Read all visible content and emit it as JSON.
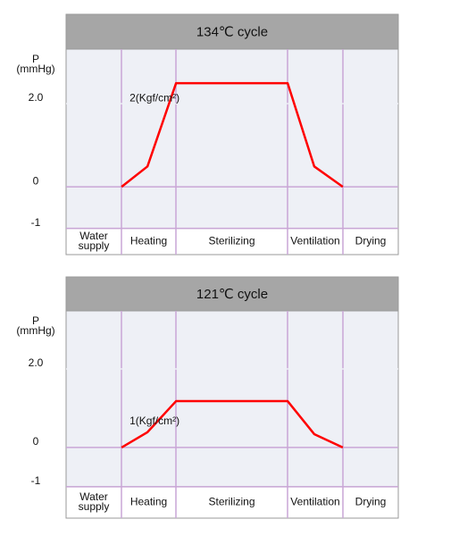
{
  "chart_data": [
    {
      "type": "line",
      "title": "134℃ cycle",
      "ylabel": [
        "P",
        "(mmHg)"
      ],
      "annotation": "2(Kgf/cm²)",
      "x": [
        16.7,
        24.5,
        33.1,
        66.7,
        74.7,
        83.3
      ],
      "series": [
        {
          "color": "#ff0000",
          "values": [
            0,
            0.49,
            2.49,
            2.49,
            0.49,
            0
          ]
        }
      ],
      "xlim": [
        0,
        100
      ],
      "ylim": [
        -1.63,
        3.31
      ],
      "yticks": [
        -1,
        0,
        {
          "value": 2,
          "label": "2.0"
        }
      ],
      "phases": [
        [
          "Water",
          "supply"
        ],
        [
          "Heating"
        ],
        [
          "Sterilizing"
        ],
        [
          "Ventilation"
        ],
        [
          "Drying"
        ]
      ]
    },
    {
      "type": "line",
      "title": "121℃ cycle",
      "ylabel": [
        "P",
        "(mmHg)"
      ],
      "annotation": "1(Kgf/cm²)",
      "x": [
        16.7,
        24.5,
        33.1,
        66.7,
        74.7,
        83.3
      ],
      "series": [
        {
          "color": "#ff0000",
          "values": [
            0,
            0.39,
            1.18,
            1.18,
            0.34,
            0
          ]
        }
      ],
      "xlim": [
        0,
        100
      ],
      "ylim": [
        -1.8,
        3.48
      ],
      "yticks": [
        -1,
        0,
        {
          "value": 2,
          "label": "2.0"
        }
      ],
      "phases": [
        [
          "Water",
          "supply"
        ],
        [
          "Heating"
        ],
        [
          "Sterilizing"
        ],
        [
          "Ventilation"
        ],
        [
          "Drying"
        ]
      ]
    }
  ]
}
